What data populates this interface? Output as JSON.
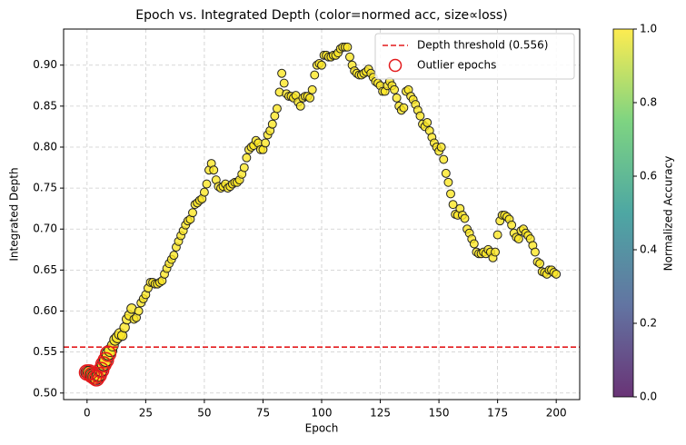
{
  "chart_data": {
    "type": "scatter",
    "title": "Epoch vs. Integrated Depth (color=normed acc, size∝loss)",
    "xlabel": "Epoch",
    "ylabel": "Integrated Depth",
    "x": [
      0,
      1,
      2,
      3,
      4,
      5,
      6,
      7,
      8,
      9,
      10,
      11,
      12,
      13,
      14,
      15,
      16,
      17,
      18,
      19,
      20,
      21,
      22,
      23,
      24,
      25,
      26,
      27,
      28,
      29,
      30,
      31,
      32,
      33,
      34,
      35,
      36,
      37,
      38,
      39,
      40,
      41,
      42,
      43,
      44,
      45,
      46,
      47,
      48,
      49,
      50,
      51,
      52,
      53,
      54,
      55,
      56,
      57,
      58,
      59,
      60,
      61,
      62,
      63,
      64,
      65,
      66,
      67,
      68,
      69,
      70,
      71,
      72,
      73,
      74,
      75,
      76,
      77,
      78,
      79,
      80,
      81,
      82,
      83,
      84,
      85,
      86,
      87,
      88,
      89,
      90,
      91,
      92,
      93,
      94,
      95,
      96,
      97,
      98,
      99,
      100,
      101,
      102,
      103,
      104,
      105,
      106,
      107,
      108,
      109,
      110,
      111,
      112,
      113,
      114,
      115,
      116,
      117,
      118,
      119,
      120,
      121,
      122,
      123,
      124,
      125,
      126,
      127,
      128,
      129,
      130,
      131,
      132,
      133,
      134,
      135,
      136,
      137,
      138,
      139,
      140,
      141,
      142,
      143,
      144,
      145,
      146,
      147,
      148,
      149,
      150,
      151,
      152,
      153,
      154,
      155,
      156,
      157,
      158,
      159,
      160,
      161,
      162,
      163,
      164,
      165,
      166,
      167,
      168,
      169,
      170,
      171,
      172,
      173,
      174,
      175,
      176,
      177,
      178,
      179,
      180,
      181,
      182,
      183,
      184,
      185,
      186,
      187,
      188,
      189,
      190,
      191,
      192,
      193,
      194,
      195,
      196,
      197,
      198,
      199,
      200
    ],
    "values": [
      0.525,
      0.525,
      0.522,
      0.52,
      0.518,
      0.522,
      0.528,
      0.535,
      0.54,
      0.548,
      0.552,
      0.558,
      0.565,
      0.568,
      0.572,
      0.57,
      0.58,
      0.59,
      0.595,
      0.603,
      0.59,
      0.592,
      0.6,
      0.61,
      0.615,
      0.62,
      0.628,
      0.635,
      0.635,
      0.633,
      0.633,
      0.635,
      0.637,
      0.645,
      0.652,
      0.658,
      0.663,
      0.668,
      0.678,
      0.685,
      0.692,
      0.698,
      0.705,
      0.71,
      0.712,
      0.72,
      0.73,
      0.732,
      0.735,
      0.737,
      0.745,
      0.755,
      0.772,
      0.78,
      0.772,
      0.76,
      0.752,
      0.75,
      0.752,
      0.755,
      0.75,
      0.752,
      0.755,
      0.757,
      0.757,
      0.76,
      0.767,
      0.775,
      0.787,
      0.797,
      0.8,
      0.802,
      0.808,
      0.805,
      0.797,
      0.797,
      0.805,
      0.815,
      0.82,
      0.828,
      0.838,
      0.847,
      0.867,
      0.89,
      0.878,
      0.865,
      0.862,
      0.862,
      0.86,
      0.863,
      0.855,
      0.85,
      0.86,
      0.862,
      0.862,
      0.86,
      0.87,
      0.888,
      0.9,
      0.902,
      0.9,
      0.912,
      0.912,
      0.91,
      0.91,
      0.912,
      0.912,
      0.915,
      0.92,
      0.922,
      0.922,
      0.922,
      0.91,
      0.9,
      0.893,
      0.89,
      0.888,
      0.888,
      0.89,
      0.892,
      0.895,
      0.89,
      0.885,
      0.88,
      0.878,
      0.875,
      0.868,
      0.868,
      0.875,
      0.88,
      0.875,
      0.87,
      0.86,
      0.85,
      0.845,
      0.848,
      0.868,
      0.87,
      0.862,
      0.858,
      0.852,
      0.845,
      0.838,
      0.828,
      0.825,
      0.83,
      0.82,
      0.812,
      0.805,
      0.8,
      0.795,
      0.8,
      0.785,
      0.768,
      0.757,
      0.743,
      0.73,
      0.718,
      0.717,
      0.725,
      0.717,
      0.713,
      0.7,
      0.695,
      0.688,
      0.682,
      0.672,
      0.67,
      0.67,
      0.672,
      0.67,
      0.675,
      0.672,
      0.665,
      0.672,
      0.693,
      0.71,
      0.717,
      0.717,
      0.715,
      0.712,
      0.705,
      0.695,
      0.69,
      0.688,
      0.698,
      0.7,
      0.695,
      0.692,
      0.688,
      0.68,
      0.672,
      0.66,
      0.658,
      0.648,
      0.647,
      0.645,
      0.65,
      0.65,
      0.647,
      0.645
    ],
    "sizes": [
      130,
      130,
      130,
      130,
      130,
      130,
      130,
      130,
      130,
      130,
      130,
      100,
      100,
      100,
      100,
      75,
      75,
      75,
      75,
      75,
      55,
      55,
      55,
      55,
      55,
      55,
      55,
      55,
      55,
      55,
      55,
      55,
      55,
      55,
      55,
      55,
      55,
      55,
      55,
      55,
      55,
      55,
      55,
      55,
      55,
      55,
      55,
      55,
      55,
      55,
      55,
      55,
      55,
      55,
      55,
      55,
      55,
      55,
      55,
      55,
      55,
      55,
      55,
      55,
      55,
      55,
      55,
      55,
      55,
      55,
      55,
      55,
      55,
      55,
      55,
      55,
      55,
      55,
      55,
      55,
      55,
      55,
      55,
      55,
      55,
      55,
      55,
      55,
      55,
      55,
      55,
      55,
      55,
      55,
      55,
      55,
      55,
      55,
      55,
      55,
      55,
      55,
      55,
      55,
      55,
      55,
      55,
      55,
      55,
      55,
      55,
      55,
      55,
      55,
      55,
      55,
      55,
      55,
      55,
      55,
      55,
      55,
      55,
      55,
      55,
      55,
      55,
      55,
      55,
      55,
      55,
      55,
      55,
      55,
      55,
      55,
      55,
      55,
      55,
      55,
      55,
      55,
      55,
      55,
      55,
      55,
      55,
      55,
      55,
      55,
      55,
      55,
      55,
      55,
      55,
      55,
      55,
      55,
      55,
      55,
      55,
      55,
      55,
      55,
      55,
      55,
      55,
      55,
      55,
      55,
      55,
      55,
      55,
      55,
      55,
      55,
      55,
      55,
      55,
      55,
      55,
      55,
      55,
      55,
      55,
      55,
      55,
      55,
      55,
      55,
      55,
      55,
      55,
      55,
      55,
      55,
      55,
      55,
      55,
      55,
      55
    ],
    "marker_color": "#fde725",
    "outliers": [
      0,
      1,
      2,
      3,
      4,
      5,
      6,
      7,
      8,
      9
    ],
    "outlier_color": "#e31a1c",
    "threshold": 0.556,
    "threshold_color": "#e31a1c",
    "legend": [
      "Depth threshold (0.556)",
      "Outlier epochs"
    ],
    "legend_loc": "upper right",
    "xlim": [
      -10,
      210
    ],
    "xticks": [
      0,
      25,
      50,
      75,
      100,
      125,
      150,
      175,
      200
    ],
    "ylim": [
      0.492,
      0.944
    ],
    "yticks": [
      {
        "value": 0.5,
        "label": "0.50"
      },
      {
        "value": 0.55,
        "label": "0.55"
      },
      {
        "value": 0.6,
        "label": "0.60"
      },
      {
        "value": 0.65,
        "label": "0.65"
      },
      {
        "value": 0.7,
        "label": "0.70"
      },
      {
        "value": 0.75,
        "label": "0.75"
      },
      {
        "value": 0.8,
        "label": "0.80"
      },
      {
        "value": 0.85,
        "label": "0.85"
      },
      {
        "value": 0.9,
        "label": "0.90"
      }
    ],
    "grid": true,
    "colorbar": {
      "label": "Normalized Accuracy",
      "lim": [
        0,
        1
      ],
      "ticks": [
        {
          "value": 0,
          "label": "0.0"
        },
        {
          "value": 0.2,
          "label": "0.2"
        },
        {
          "value": 0.4,
          "label": "0.4"
        },
        {
          "value": 0.6,
          "label": "0.6"
        },
        {
          "value": 0.8,
          "label": "0.8"
        },
        {
          "value": 1,
          "label": "1.0"
        }
      ]
    }
  }
}
